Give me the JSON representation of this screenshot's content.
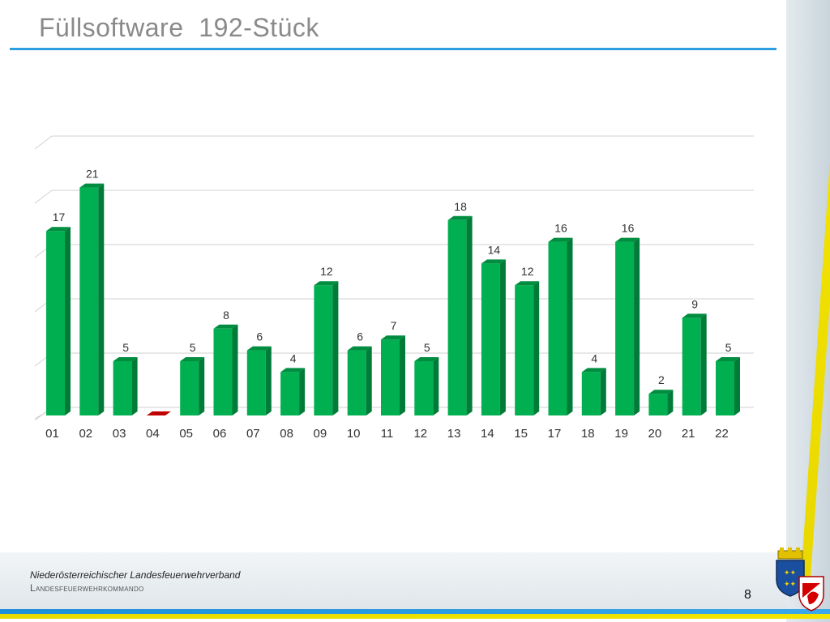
{
  "slide": {
    "title": "Füllsoftware  192-Stück",
    "page_number": "8"
  },
  "footer": {
    "org_name": "Niederösterreichischer Landesfeuerwehrverband",
    "org_sub": "Landesfeuerwehrkommando"
  },
  "colors": {
    "bar": "#00b050",
    "bar_zero": "#c00000",
    "title_rule": "#2f9ee0"
  },
  "chart_data": {
    "type": "bar",
    "categories": [
      "01",
      "02",
      "03",
      "04",
      "05",
      "06",
      "07",
      "08",
      "09",
      "10",
      "11",
      "12",
      "13",
      "14",
      "15",
      "17",
      "18",
      "19",
      "20",
      "21",
      "22"
    ],
    "values": [
      17,
      21,
      5,
      0,
      5,
      8,
      6,
      4,
      12,
      6,
      7,
      5,
      18,
      14,
      12,
      16,
      4,
      16,
      2,
      9,
      5
    ],
    "data_labels": [
      "17",
      "21",
      "5",
      "",
      "5",
      "8",
      "6",
      "4",
      "12",
      "6",
      "7",
      "5",
      "18",
      "14",
      "12",
      "16",
      "4",
      "16",
      "2",
      "9",
      "5"
    ],
    "ylim": [
      0,
      25
    ],
    "grid": true,
    "legend": "none"
  }
}
